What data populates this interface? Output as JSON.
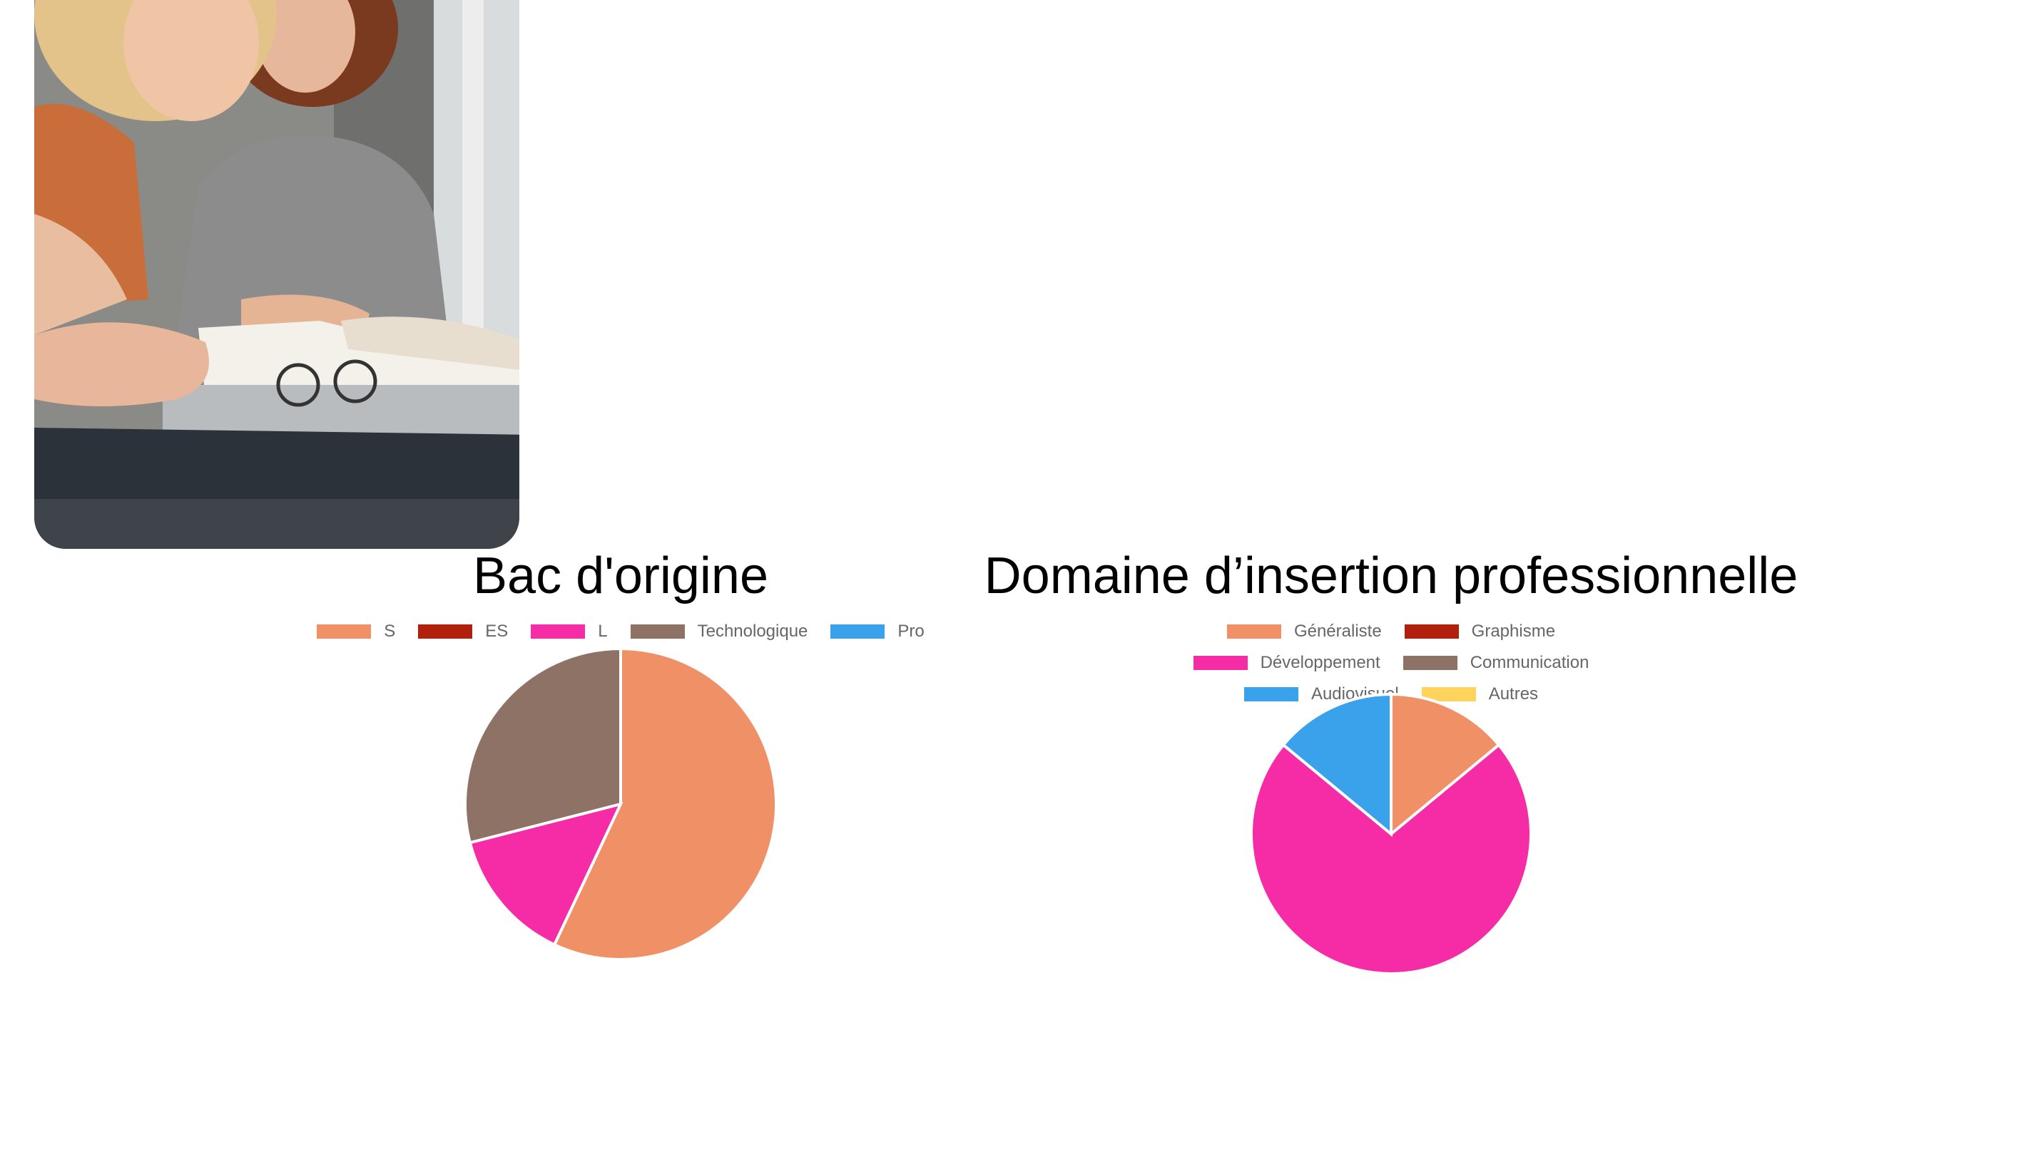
{
  "photo": {
    "icon": "people-studying-photo"
  },
  "chart_data": [
    {
      "type": "pie",
      "title": "Bac d'origine",
      "categories": [
        "S",
        "ES",
        "L",
        "Technologique",
        "Pro"
      ],
      "values": [
        57,
        0,
        14,
        29,
        0
      ],
      "colors": [
        "#F09066",
        "#B0200C",
        "#F52CA6",
        "#8E7265",
        "#3AA2EA"
      ],
      "legend": "top"
    },
    {
      "type": "pie",
      "title": "Domaine d’insertion professionnelle",
      "categories": [
        "Généraliste",
        "Graphisme",
        "Développement",
        "Communication",
        "Audiovisuel",
        "Autres"
      ],
      "values": [
        14,
        0,
        72,
        0,
        14,
        0
      ],
      "colors": [
        "#F09066",
        "#B0200C",
        "#F52CA6",
        "#8E7265",
        "#3AA2EA",
        "#FFD35C"
      ],
      "legend": "top"
    }
  ]
}
